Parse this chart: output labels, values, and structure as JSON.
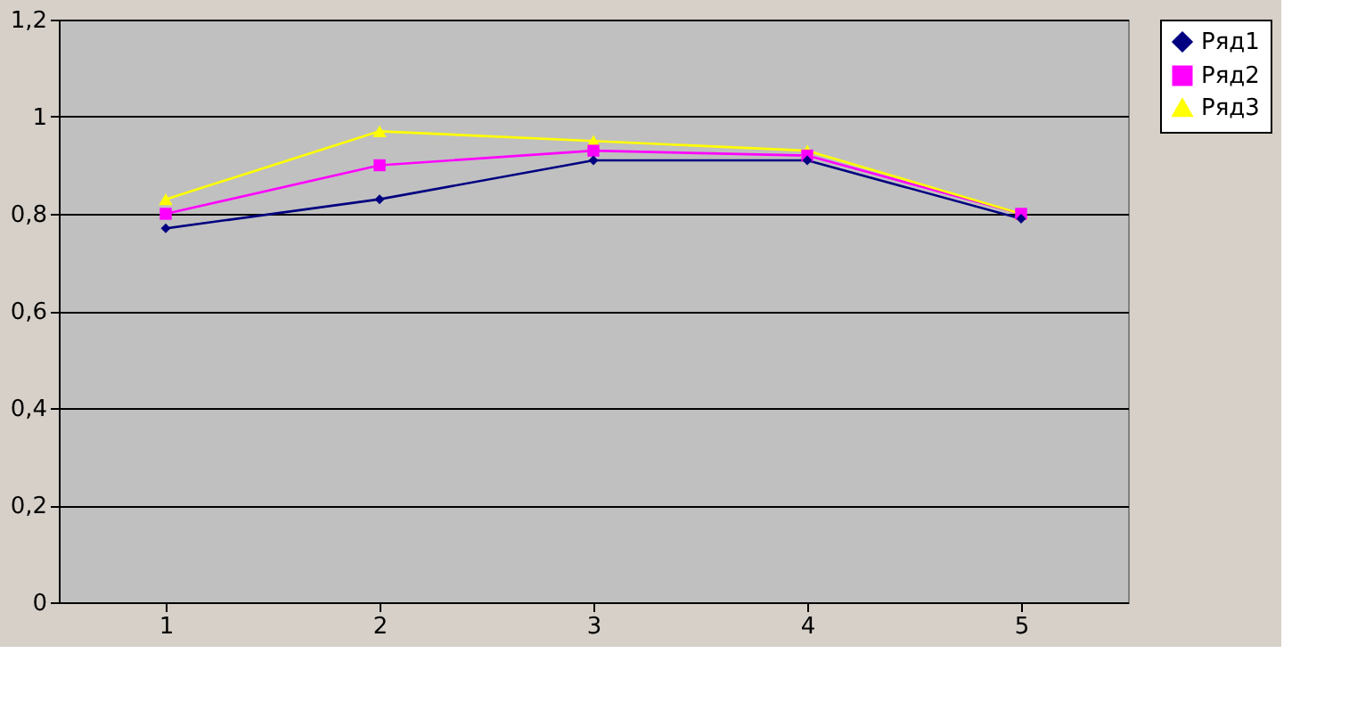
{
  "chart_data": {
    "type": "line",
    "categories": [
      "1",
      "2",
      "3",
      "4",
      "5"
    ],
    "series": [
      {
        "name": "Ряд1",
        "color": "#000080",
        "marker": "diamond",
        "values": [
          0.77,
          0.83,
          0.91,
          0.91,
          0.79
        ]
      },
      {
        "name": "Ряд2",
        "color": "#ff00ff",
        "marker": "square",
        "values": [
          0.8,
          0.9,
          0.93,
          0.92,
          0.8
        ]
      },
      {
        "name": "Ряд3",
        "color": "#ffff00",
        "marker": "triangle",
        "values": [
          0.83,
          0.97,
          0.95,
          0.93,
          0.8
        ]
      }
    ],
    "ylim": [
      0,
      1.2
    ],
    "yticks": [
      {
        "value": 0,
        "label": "0"
      },
      {
        "value": 0.2,
        "label": "0,2"
      },
      {
        "value": 0.4,
        "label": "0,4"
      },
      {
        "value": 0.6,
        "label": "0,6"
      },
      {
        "value": 0.8,
        "label": "0,8"
      },
      {
        "value": 1,
        "label": "1"
      },
      {
        "value": 1.2,
        "label": "1,2"
      }
    ],
    "grid": "y",
    "legend": "right",
    "line_style": "solid"
  }
}
